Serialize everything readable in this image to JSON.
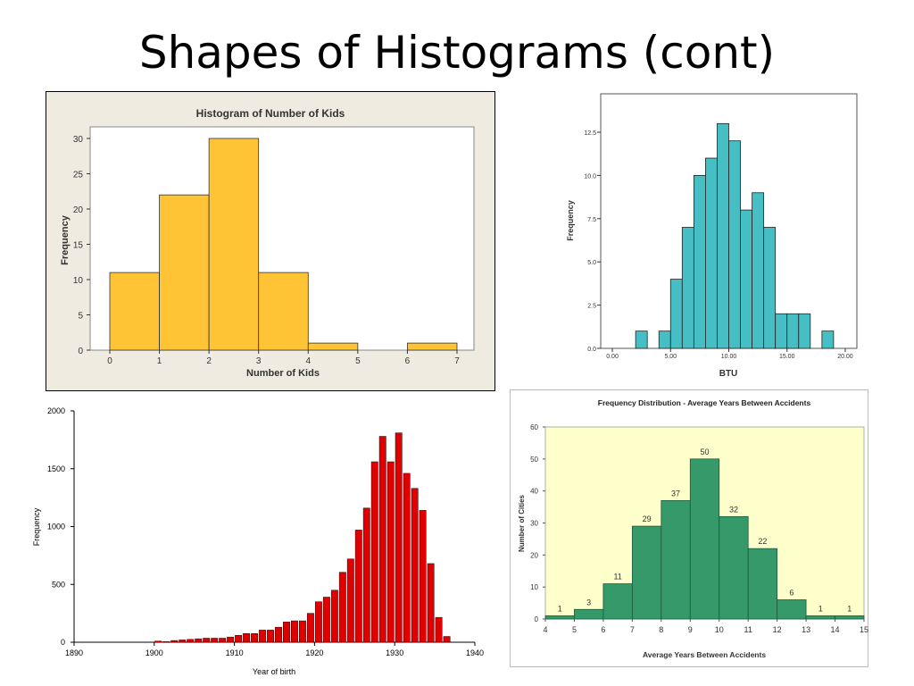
{
  "slide": {
    "title": "Shapes of Histograms (cont)"
  },
  "colors": {
    "kids_bar": "#FFC436",
    "kids_bg": "#F0EBE0",
    "btu_bar": "#45BFC4",
    "birth_bar": "#E00000",
    "acc_bar": "#35996A",
    "acc_plot_bg": "#FFFFCC"
  },
  "chart_data": [
    {
      "type": "bar",
      "title": "Histogram of Number of Kids",
      "xlabel": "Number of Kids",
      "ylabel": "Frequency",
      "bins": [
        [
          0,
          1
        ],
        [
          1,
          2
        ],
        [
          2,
          3
        ],
        [
          3,
          4
        ],
        [
          4,
          5
        ],
        [
          6,
          7
        ]
      ],
      "values": [
        11,
        22,
        30,
        11,
        1,
        1
      ],
      "xlim": [
        0,
        7
      ],
      "ylim": [
        0,
        32
      ],
      "xticks": [
        "0",
        "1",
        "2",
        "3",
        "4",
        "5",
        "6",
        "7"
      ],
      "yticks": [
        "0",
        "5",
        "10",
        "15",
        "20",
        "25",
        "30"
      ],
      "grid": false
    },
    {
      "type": "bar",
      "title": "",
      "xlabel": "BTU",
      "ylabel": "Frequency",
      "x": [
        2.5,
        3.5,
        4.5,
        5.5,
        6.5,
        7.5,
        8.5,
        9.5,
        10.5,
        11.5,
        12.5,
        13.5,
        14.5,
        15.5,
        16.5,
        17.5,
        18.5
      ],
      "values": [
        1,
        0,
        1,
        4,
        7,
        10,
        11,
        13,
        12,
        8,
        9,
        7,
        2,
        2,
        2,
        0,
        1
      ],
      "bin_width": 1,
      "xlim": [
        -1,
        21
      ],
      "ylim": [
        0,
        14
      ],
      "xticks": [
        "0.00",
        "5.00",
        "10.00",
        "15.00",
        "20.00"
      ],
      "yticks": [
        "0.0",
        "2.5",
        "5.0",
        "7.5",
        "10.0",
        "12.5"
      ],
      "grid": false
    },
    {
      "type": "bar",
      "title": "",
      "xlabel": "Year of birth",
      "ylabel": "Frequency",
      "x": [
        1900,
        1901,
        1902,
        1903,
        1904,
        1905,
        1906,
        1907,
        1908,
        1909,
        1910,
        1911,
        1912,
        1913,
        1914,
        1915,
        1916,
        1917,
        1918,
        1919,
        1920,
        1921,
        1922,
        1923,
        1924,
        1925,
        1926,
        1927,
        1928,
        1929,
        1930,
        1931,
        1932,
        1933,
        1934,
        1935,
        1936
      ],
      "values": [
        10,
        5,
        15,
        20,
        25,
        30,
        35,
        35,
        35,
        45,
        60,
        75,
        75,
        105,
        105,
        130,
        175,
        185,
        185,
        250,
        350,
        390,
        450,
        605,
        720,
        970,
        1160,
        1560,
        1780,
        1560,
        1810,
        1460,
        1330,
        1140,
        680,
        215,
        50
      ],
      "bin_width": 1,
      "xlim": [
        1890,
        1940
      ],
      "ylim": [
        0,
        2000
      ],
      "xticks": [
        "1890",
        "1900",
        "1910",
        "1920",
        "1930",
        "1940"
      ],
      "yticks": [
        "0",
        "500",
        "1000",
        "1500",
        "2000"
      ],
      "grid": false
    },
    {
      "type": "bar",
      "title": "Frequency Distribution - Average Years Between Accidents",
      "xlabel": "Average Years Between Accidents",
      "ylabel": "Number of Cities",
      "x": [
        4,
        5,
        6,
        7,
        8,
        9,
        10,
        11,
        12,
        13,
        14
      ],
      "values": [
        1,
        3,
        11,
        29,
        37,
        50,
        32,
        22,
        6,
        1,
        1
      ],
      "data_labels": [
        "1",
        "3",
        "11",
        "29",
        "37",
        "50",
        "32",
        "22",
        "6",
        "1",
        "1"
      ],
      "bin_width": 1,
      "xlim": [
        4,
        15
      ],
      "ylim": [
        0,
        60
      ],
      "xticks": [
        "4",
        "5",
        "6",
        "7",
        "8",
        "9",
        "10",
        "11",
        "12",
        "13",
        "14",
        "15"
      ],
      "yticks": [
        "0",
        "10",
        "20",
        "30",
        "40",
        "50",
        "60"
      ],
      "grid": false
    }
  ]
}
